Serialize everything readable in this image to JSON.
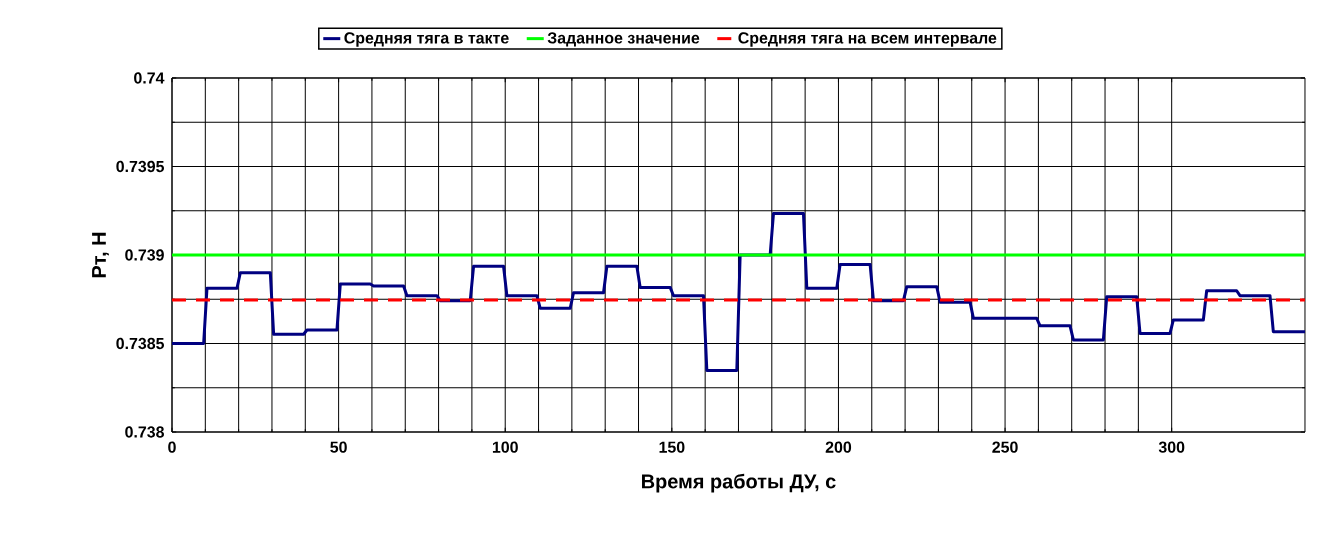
{
  "chart_data": {
    "type": "line",
    "xlabel": "Время работы ДУ, с",
    "ylabel": "Рт, Н",
    "xlim": [
      0,
      340
    ],
    "ylim": [
      0.738,
      0.74
    ],
    "xticks": [
      0,
      50,
      100,
      150,
      200,
      250,
      300
    ],
    "yticks": [
      0.738,
      0.7385,
      0.739,
      0.7395,
      0.74
    ],
    "grid": true,
    "legend": "top",
    "series": [
      {
        "name": "Средняя тяга в такте",
        "color": "#000080",
        "line_style": "solid",
        "x": [
          0,
          9.5,
          10.5,
          19.5,
          20.5,
          29.5,
          30.5,
          39.5,
          40.5,
          49.5,
          50.5,
          59.5,
          60.5,
          69.5,
          70.5,
          79.5,
          80.5,
          89.5,
          90.5,
          99.5,
          100.5,
          109.5,
          110.5,
          119.5,
          120.5,
          129.5,
          130.5,
          139.5,
          140.5,
          149.5,
          150.5,
          159.5,
          160.5,
          169.5,
          170.5,
          179.5,
          180.5,
          189.5,
          190.5,
          199.5,
          200.5,
          209.5,
          210.5,
          219.5,
          220.5,
          229.5,
          230.5,
          239.5,
          240.5,
          249.5,
          250.5,
          259.5,
          260.5,
          269.5,
          270.5,
          279.5,
          280.5,
          289.5,
          290.5,
          299.5,
          300.5,
          309.5,
          310.5,
          319.5,
          320.5,
          329.5,
          330.5,
          340
        ],
        "values": [
          0.7385,
          0.7385,
          0.738812,
          0.738812,
          0.7389,
          0.7389,
          0.738552,
          0.738552,
          0.738576,
          0.738576,
          0.738836,
          0.738836,
          0.738825,
          0.738825,
          0.73877,
          0.73877,
          0.738742,
          0.738742,
          0.738936,
          0.738936,
          0.73877,
          0.73877,
          0.738699,
          0.738699,
          0.738787,
          0.738787,
          0.738936,
          0.738936,
          0.738817,
          0.738817,
          0.73877,
          0.73877,
          0.738348,
          0.738348,
          0.739,
          0.739,
          0.739234,
          0.739234,
          0.738812,
          0.738812,
          0.738947,
          0.738947,
          0.738742,
          0.738742,
          0.738821,
          0.738821,
          0.738733,
          0.738733,
          0.738642,
          0.738642,
          0.738642,
          0.738642,
          0.7386,
          0.7386,
          0.73852,
          0.73852,
          0.738764,
          0.738764,
          0.738557,
          0.738557,
          0.738633,
          0.738633,
          0.738798,
          0.738798,
          0.73877,
          0.73877,
          0.738567,
          0.738567
        ]
      },
      {
        "name": "Заданное значение",
        "color": "#00ff00",
        "line_style": "solid",
        "x": [
          0,
          340
        ],
        "values": [
          0.739,
          0.739
        ]
      },
      {
        "name": "Средняя тяга на всем интервале",
        "color": "#ff0000",
        "line_style": "dashed",
        "x": [
          0,
          340
        ],
        "values": [
          0.738746,
          0.738746
        ]
      }
    ]
  }
}
